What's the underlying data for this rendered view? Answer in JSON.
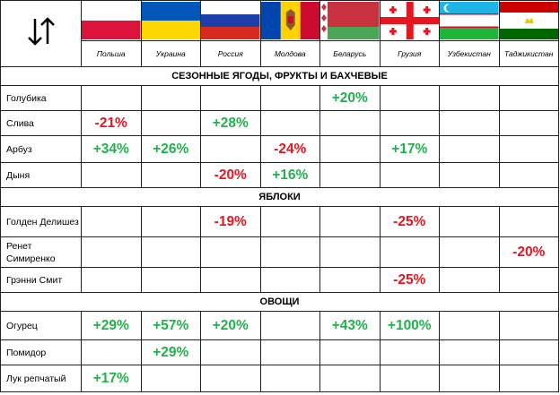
{
  "table": {
    "columns": [
      "Польша",
      "Украина",
      "Россия",
      "Молдова",
      "Беларусь",
      "Грузия",
      "Узбекистан",
      "Таджикистан"
    ],
    "positive_color": "#22b14c",
    "negative_color": "#e8141e",
    "sections": [
      {
        "title": "СЕЗОННЫЕ ЯГОДЫ, ФРУКТЫ И БАХЧЕВЫЕ",
        "rows": [
          {
            "label": "Голубика",
            "cells": [
              null,
              null,
              null,
              null,
              "+20%",
              null,
              null,
              null
            ]
          },
          {
            "label": "Слива",
            "cells": [
              "-21%",
              null,
              "+28%",
              null,
              null,
              null,
              null,
              null
            ]
          },
          {
            "label": "Арбуз",
            "cells": [
              "+34%",
              "+26%",
              null,
              "-24%",
              null,
              "+17%",
              null,
              null
            ]
          },
          {
            "label": "Дыня",
            "cells": [
              null,
              null,
              "-20%",
              "+16%",
              null,
              null,
              null,
              null
            ]
          }
        ]
      },
      {
        "title": "ЯБЛОКИ",
        "rows": [
          {
            "label": "Голден Делишез",
            "cells": [
              null,
              null,
              "-19%",
              null,
              null,
              "-25%",
              null,
              null
            ]
          },
          {
            "label": "Ренет Симиренко",
            "cells": [
              null,
              null,
              null,
              null,
              null,
              null,
              null,
              "-20%"
            ]
          },
          {
            "label": "Грэнни Смит",
            "cells": [
              null,
              null,
              null,
              null,
              null,
              "-25%",
              null,
              null
            ]
          }
        ]
      },
      {
        "title": "ОВОЩИ",
        "rows": [
          {
            "label": "Огурец",
            "cells": [
              "+29%",
              "+57%",
              "+20%",
              null,
              "+43%",
              "+100%",
              null,
              null
            ]
          },
          {
            "label": "Помидор",
            "cells": [
              null,
              "+29%",
              null,
              null,
              null,
              null,
              null,
              null
            ]
          },
          {
            "label": "Лук репчатый",
            "cells": [
              "+17%",
              null,
              null,
              null,
              null,
              null,
              null,
              null
            ]
          }
        ]
      }
    ]
  }
}
